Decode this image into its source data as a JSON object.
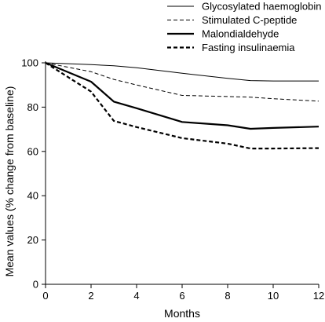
{
  "chart_data": {
    "type": "line",
    "xlabel": "Months",
    "ylabel": "Mean values (% change from baseline)",
    "xlim": [
      0,
      12
    ],
    "ylim": [
      0,
      100
    ],
    "xticks": [
      0,
      2,
      4,
      6,
      8,
      10,
      12
    ],
    "yticks": [
      0,
      20,
      40,
      60,
      80,
      100
    ],
    "grid": false,
    "legend_position": "top-right",
    "series": [
      {
        "name": "Glycosylated haemoglobin",
        "style": "thin-solid",
        "x": [
          0,
          2,
          3,
          4,
          6,
          8,
          9,
          10,
          12
        ],
        "y": [
          100,
          99.2,
          98.7,
          97.8,
          95.3,
          93,
          92,
          91.8,
          91.8
        ]
      },
      {
        "name": "Stimulated C-peptide",
        "style": "thin-dashed",
        "x": [
          0,
          2,
          3,
          4,
          6,
          8,
          9,
          10,
          12
        ],
        "y": [
          100,
          96,
          92.5,
          90,
          85.3,
          84.8,
          84.5,
          83.8,
          82.7
        ]
      },
      {
        "name": "Malondialdehyde",
        "style": "thick-solid",
        "x": [
          0,
          2,
          3,
          4,
          6,
          8,
          9,
          10,
          12
        ],
        "y": [
          100,
          91.5,
          82.5,
          79.5,
          73.3,
          71.8,
          70.2,
          70.6,
          71.2
        ]
      },
      {
        "name": "Fasting insulinaemia",
        "style": "thick-dashed",
        "x": [
          0,
          2,
          3,
          4,
          6,
          8,
          9,
          10,
          12
        ],
        "y": [
          100,
          87,
          73.8,
          71,
          66,
          63.5,
          61.3,
          61.3,
          61.5
        ]
      }
    ]
  }
}
